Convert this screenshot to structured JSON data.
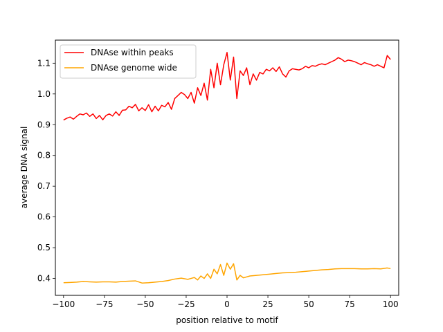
{
  "chart_data": {
    "type": "line",
    "title": "",
    "xlabel": "position relative to motif",
    "ylabel": "average DNA signal",
    "xlim": [
      -105,
      105
    ],
    "ylim": [
      0.345,
      1.175
    ],
    "xticks": [
      -100,
      -75,
      -50,
      -25,
      0,
      25,
      50,
      75,
      100
    ],
    "xtick_labels": [
      "−100",
      "−75",
      "−50",
      "−25",
      "0",
      "25",
      "50",
      "75",
      "100"
    ],
    "yticks": [
      0.4,
      0.5,
      0.6,
      0.7,
      0.8,
      0.9,
      1.0,
      1.1
    ],
    "ytick_labels": [
      "0.4",
      "0.5",
      "0.6",
      "0.7",
      "0.8",
      "0.9",
      "1.0",
      "1.1"
    ],
    "legend_position": "top-left",
    "grid": false,
    "series": [
      {
        "name": "DNAse within peaks",
        "color": "#ff0000",
        "points": [
          [
            -100,
            0.915
          ],
          [
            -98,
            0.921
          ],
          [
            -96,
            0.925
          ],
          [
            -94,
            0.918
          ],
          [
            -92,
            0.927
          ],
          [
            -90,
            0.935
          ],
          [
            -88,
            0.932
          ],
          [
            -86,
            0.938
          ],
          [
            -84,
            0.927
          ],
          [
            -82,
            0.935
          ],
          [
            -80,
            0.92
          ],
          [
            -78,
            0.93
          ],
          [
            -76,
            0.916
          ],
          [
            -74,
            0.93
          ],
          [
            -72,
            0.935
          ],
          [
            -70,
            0.928
          ],
          [
            -68,
            0.942
          ],
          [
            -66,
            0.93
          ],
          [
            -64,
            0.947
          ],
          [
            -62,
            0.948
          ],
          [
            -60,
            0.96
          ],
          [
            -58,
            0.955
          ],
          [
            -56,
            0.966
          ],
          [
            -54,
            0.945
          ],
          [
            -52,
            0.955
          ],
          [
            -50,
            0.946
          ],
          [
            -48,
            0.965
          ],
          [
            -46,
            0.942
          ],
          [
            -44,
            0.96
          ],
          [
            -42,
            0.945
          ],
          [
            -40,
            0.963
          ],
          [
            -38,
            0.958
          ],
          [
            -36,
            0.972
          ],
          [
            -34,
            0.95
          ],
          [
            -32,
            0.985
          ],
          [
            -30,
            0.995
          ],
          [
            -28,
            1.005
          ],
          [
            -26,
            0.998
          ],
          [
            -24,
            0.985
          ],
          [
            -22,
            1.005
          ],
          [
            -20,
            0.97
          ],
          [
            -18,
            1.02
          ],
          [
            -16,
            0.995
          ],
          [
            -14,
            1.035
          ],
          [
            -12,
            0.98
          ],
          [
            -10,
            1.08
          ],
          [
            -8,
            1.02
          ],
          [
            -6,
            1.1
          ],
          [
            -4,
            1.03
          ],
          [
            -2,
            1.095
          ],
          [
            0,
            1.135
          ],
          [
            2,
            1.045
          ],
          [
            4,
            1.12
          ],
          [
            6,
            0.985
          ],
          [
            8,
            1.075
          ],
          [
            10,
            1.06
          ],
          [
            12,
            1.085
          ],
          [
            14,
            1.03
          ],
          [
            16,
            1.065
          ],
          [
            18,
            1.045
          ],
          [
            20,
            1.07
          ],
          [
            22,
            1.065
          ],
          [
            24,
            1.08
          ],
          [
            26,
            1.075
          ],
          [
            28,
            1.085
          ],
          [
            30,
            1.073
          ],
          [
            32,
            1.088
          ],
          [
            34,
            1.065
          ],
          [
            36,
            1.055
          ],
          [
            38,
            1.075
          ],
          [
            40,
            1.082
          ],
          [
            42,
            1.08
          ],
          [
            44,
            1.078
          ],
          [
            46,
            1.082
          ],
          [
            48,
            1.09
          ],
          [
            50,
            1.085
          ],
          [
            52,
            1.092
          ],
          [
            54,
            1.09
          ],
          [
            56,
            1.095
          ],
          [
            58,
            1.098
          ],
          [
            60,
            1.095
          ],
          [
            62,
            1.1
          ],
          [
            64,
            1.105
          ],
          [
            66,
            1.11
          ],
          [
            68,
            1.118
          ],
          [
            70,
            1.113
          ],
          [
            72,
            1.105
          ],
          [
            74,
            1.11
          ],
          [
            76,
            1.108
          ],
          [
            78,
            1.105
          ],
          [
            80,
            1.1
          ],
          [
            82,
            1.095
          ],
          [
            84,
            1.102
          ],
          [
            86,
            1.098
          ],
          [
            88,
            1.095
          ],
          [
            90,
            1.09
          ],
          [
            92,
            1.095
          ],
          [
            94,
            1.09
          ],
          [
            96,
            1.085
          ],
          [
            98,
            1.125
          ],
          [
            100,
            1.112
          ]
        ]
      },
      {
        "name": "DNAse genome wide",
        "color": "#ffa500",
        "points": [
          [
            -100,
            0.386
          ],
          [
            -96,
            0.387
          ],
          [
            -92,
            0.388
          ],
          [
            -88,
            0.39
          ],
          [
            -84,
            0.389
          ],
          [
            -80,
            0.388
          ],
          [
            -76,
            0.389
          ],
          [
            -72,
            0.389
          ],
          [
            -68,
            0.388
          ],
          [
            -64,
            0.39
          ],
          [
            -60,
            0.391
          ],
          [
            -56,
            0.392
          ],
          [
            -52,
            0.385
          ],
          [
            -48,
            0.386
          ],
          [
            -44,
            0.388
          ],
          [
            -40,
            0.39
          ],
          [
            -36,
            0.393
          ],
          [
            -32,
            0.398
          ],
          [
            -28,
            0.401
          ],
          [
            -24,
            0.397
          ],
          [
            -20,
            0.403
          ],
          [
            -18,
            0.395
          ],
          [
            -16,
            0.408
          ],
          [
            -14,
            0.4
          ],
          [
            -12,
            0.415
          ],
          [
            -10,
            0.4
          ],
          [
            -8,
            0.43
          ],
          [
            -6,
            0.415
          ],
          [
            -4,
            0.445
          ],
          [
            -2,
            0.41
          ],
          [
            0,
            0.45
          ],
          [
            2,
            0.43
          ],
          [
            4,
            0.448
          ],
          [
            6,
            0.395
          ],
          [
            8,
            0.41
          ],
          [
            10,
            0.402
          ],
          [
            14,
            0.408
          ],
          [
            18,
            0.41
          ],
          [
            22,
            0.412
          ],
          [
            26,
            0.414
          ],
          [
            30,
            0.416
          ],
          [
            34,
            0.418
          ],
          [
            38,
            0.419
          ],
          [
            42,
            0.42
          ],
          [
            46,
            0.422
          ],
          [
            50,
            0.424
          ],
          [
            54,
            0.426
          ],
          [
            58,
            0.428
          ],
          [
            62,
            0.429
          ],
          [
            66,
            0.431
          ],
          [
            70,
            0.432
          ],
          [
            74,
            0.432
          ],
          [
            78,
            0.432
          ],
          [
            82,
            0.431
          ],
          [
            86,
            0.431
          ],
          [
            90,
            0.432
          ],
          [
            94,
            0.431
          ],
          [
            98,
            0.434
          ],
          [
            100,
            0.432
          ]
        ]
      }
    ]
  }
}
